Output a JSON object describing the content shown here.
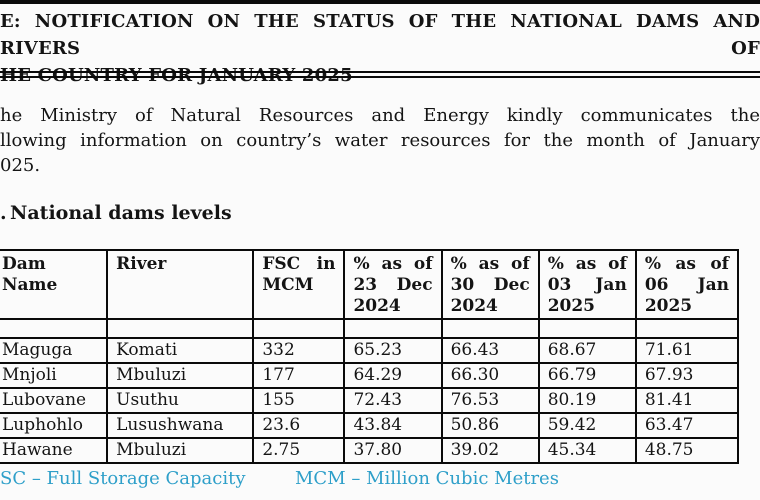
{
  "page": {
    "background": "#fbfbfb",
    "text_color": "#141414",
    "accent_color": "#2e9fc9",
    "rule_color": "#0a0a0a"
  },
  "title": {
    "line1": "E: NOTIFICATION ON THE STATUS OF THE NATIONAL DAMS AND RIVERS OF",
    "line2": "HE COUNTRY FOR JANUARY 2025"
  },
  "intro": {
    "line1": "he Ministry of Natural Resources and Energy kindly communicates the",
    "line2": "llowing information on country’s water resources for the month of January",
    "line3": "025."
  },
  "section": {
    "prefix": ".",
    "heading": "National dams levels"
  },
  "dams_table": {
    "headers": [
      "Dam\nName",
      "River",
      "FSC in\nMCM",
      "% as of\n23 Dec\n2024",
      "% as of\n30 Dec\n2024",
      "% as of\n03 Jan\n2025",
      "% as of\n06 Jan\n2025"
    ],
    "rows": [
      {
        "dam": "Maguga",
        "river": "Komati",
        "fsc": "332",
        "pct_23_dec_2024": "65.23",
        "pct_30_dec_2024": "66.43",
        "pct_03_jan_2025": "68.67",
        "pct_06_jan_2025": "71.61"
      },
      {
        "dam": "Mnjoli",
        "river": "Mbuluzi",
        "fsc": "177",
        "pct_23_dec_2024": "64.29",
        "pct_30_dec_2024": "66.30",
        "pct_03_jan_2025": "66.79",
        "pct_06_jan_2025": "67.93"
      },
      {
        "dam": "Lubovane",
        "river": "Usuthu",
        "fsc": "155",
        "pct_23_dec_2024": "72.43",
        "pct_30_dec_2024": "76.53",
        "pct_03_jan_2025": "80.19",
        "pct_06_jan_2025": "81.41"
      },
      {
        "dam": "Luphohlo",
        "river": "Lusushwana",
        "fsc": "23.6",
        "pct_23_dec_2024": "43.84",
        "pct_30_dec_2024": "50.86",
        "pct_03_jan_2025": "59.42",
        "pct_06_jan_2025": "63.47"
      },
      {
        "dam": "Hawane",
        "river": "Mbuluzi",
        "fsc": "2.75",
        "pct_23_dec_2024": "37.80",
        "pct_30_dec_2024": "39.02",
        "pct_03_jan_2025": "45.34",
        "pct_06_jan_2025": "48.75"
      }
    ]
  },
  "legend": {
    "fsc": "SC – Full Storage Capacity",
    "mcm": "MCM – Million Cubic Metres"
  }
}
